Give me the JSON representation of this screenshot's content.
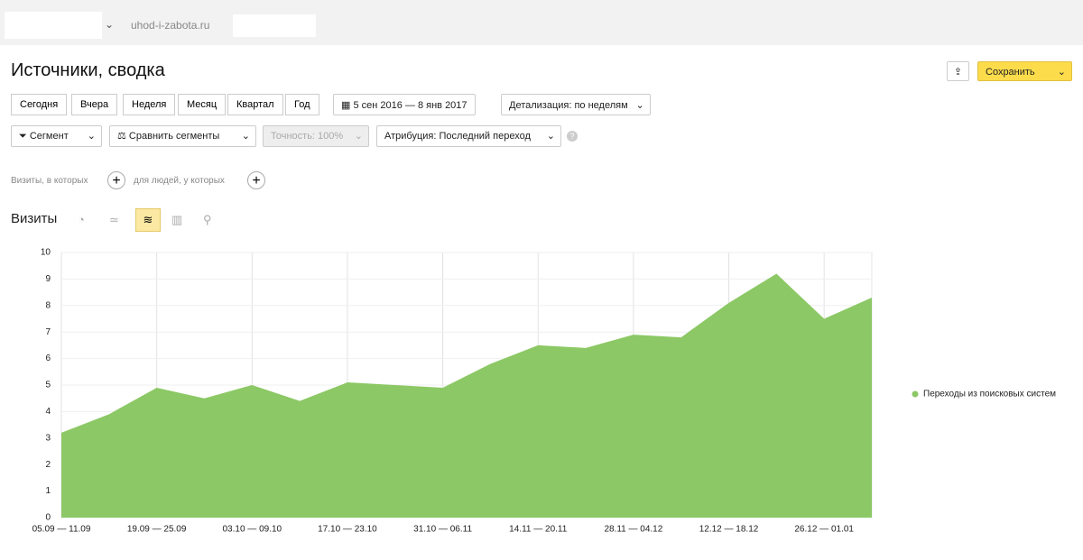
{
  "header": {
    "site": "uhod-i-zabota.ru"
  },
  "report": {
    "title": "Источники, сводка",
    "periods": [
      "Сегодня",
      "Вчера",
      "Неделя",
      "Месяц",
      "Квартал",
      "Год"
    ],
    "date_range": "5 сен 2016 — 8 янв 2017",
    "detail": "Детализация: по неделям",
    "save": "Сохранить",
    "filters": [
      "Сегмент",
      "Сравнить сегменты",
      "Точность: 100%",
      "Атрибуция: Последний переход"
    ],
    "condition_visits": "Визиты, в которых",
    "condition_people": "для людей, у которых",
    "metric": "Визиты"
  },
  "chart_data": {
    "type": "area",
    "categories": [
      "05.09 — 11.09",
      null,
      "19.09 — 25.09",
      null,
      "03.10 — 09.10",
      null,
      "17.10 — 23.10",
      null,
      "31.10 — 06.11",
      null,
      "14.11 — 20.11",
      null,
      "28.11 — 04.12",
      null,
      "12.12 — 18.12",
      null,
      "26.12 — 01.01",
      null
    ],
    "series": [
      {
        "name": "Переходы из поисковых систем",
        "color": "#8cc865",
        "values": [
          3.2,
          3.9,
          4.9,
          4.5,
          5.0,
          4.4,
          5.1,
          5.0,
          4.9,
          5.8,
          6.5,
          6.4,
          6.9,
          6.8,
          8.1,
          9.2,
          7.5,
          8.3
        ]
      }
    ],
    "ylim": [
      0,
      10
    ],
    "yticks": [
      0,
      1,
      2,
      3,
      4,
      5,
      6,
      7,
      8,
      9,
      10
    ],
    "grid": true,
    "legend": "right"
  }
}
